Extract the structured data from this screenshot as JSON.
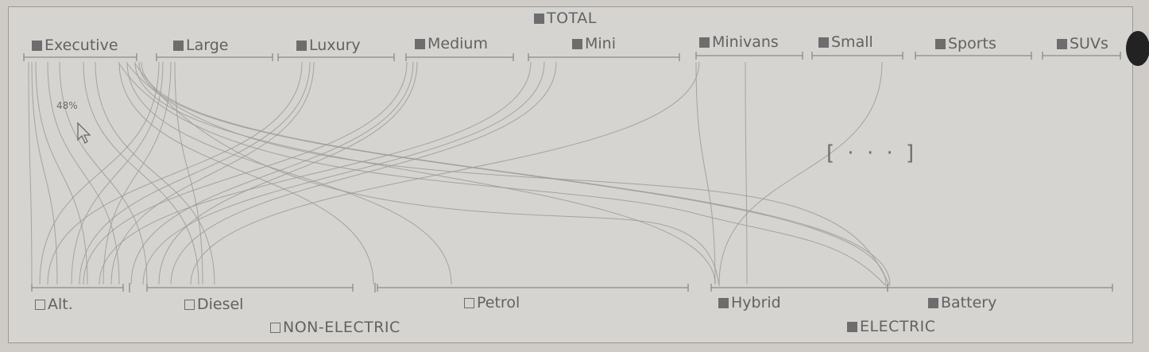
{
  "top_group": {
    "label": "TOTAL",
    "checked": true
  },
  "categories": [
    {
      "label": "Executive",
      "checked": true
    },
    {
      "label": "Large",
      "checked": true
    },
    {
      "label": "Luxury",
      "checked": true
    },
    {
      "label": "Medium",
      "checked": true
    },
    {
      "label": "Mini",
      "checked": true
    },
    {
      "label": "Minivans",
      "checked": true
    },
    {
      "label": "Small",
      "checked": true
    },
    {
      "label": "Sports",
      "checked": true
    },
    {
      "label": "SUVs",
      "checked": true
    }
  ],
  "fuel_types": [
    {
      "label": "Alt.",
      "checked": false
    },
    {
      "label": "Diesel",
      "checked": false
    },
    {
      "label": "Petrol",
      "checked": false
    },
    {
      "label": "Hybrid",
      "checked": true
    },
    {
      "label": "Battery",
      "checked": true
    }
  ],
  "bottom_groups": [
    {
      "label": "NON-ELECTRIC",
      "checked": false
    },
    {
      "label": "ELECTRIC",
      "checked": true
    }
  ],
  "hover_value": "48%",
  "more_indicator": "[ · · · ]",
  "colors": {
    "stroke": "#8a8a8a",
    "paper": "#d6d4d0"
  }
}
